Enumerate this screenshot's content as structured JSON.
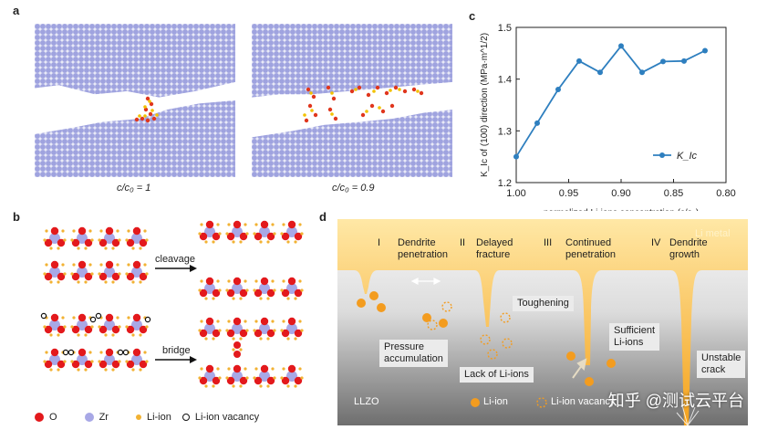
{
  "panel_a": {
    "label": "a",
    "caption_left": "c/c₀ = 1",
    "caption_right": "c/c₀ = 0.9"
  },
  "panel_b": {
    "label": "b",
    "cleavage": "cleavage",
    "bridge": "bridge",
    "legend": {
      "o": "O",
      "zr": "Zr",
      "li": "Li-ion",
      "vacancy": "Li-ion vacancy"
    }
  },
  "panel_c": {
    "label": "c",
    "chart_data": {
      "type": "line",
      "xlabel": "normalized Li-ions concentration (c/c₀)",
      "ylabel": "K_Ic of (100) direction (MPa·m^1/2)",
      "x": [
        1.0,
        0.98,
        0.96,
        0.94,
        0.92,
        0.9,
        0.88,
        0.86,
        0.84,
        0.82
      ],
      "y": [
        1.25,
        1.315,
        1.38,
        1.435,
        1.413,
        1.464,
        1.413,
        1.434,
        1.435,
        1.455
      ],
      "xlim": [
        1.0,
        0.8
      ],
      "ylim": [
        1.2,
        1.5
      ],
      "x_ticks": [
        "1.00",
        "0.95",
        "0.90",
        "0.85",
        "0.80"
      ],
      "y_ticks": [
        "1.2",
        "1.3",
        "1.4",
        "1.5"
      ],
      "series_name": "K_Ic",
      "legend_position": "bottom-right",
      "color": "#2e7fbf"
    }
  },
  "panel_d": {
    "label": "d",
    "li_metal": "Li metal",
    "stage1_num": "I",
    "stage1": "Dendrite\npenetration",
    "stage2_num": "II",
    "stage2": "Delayed\nfracture",
    "stage3_num": "III",
    "stage3": "Continued\npenetration",
    "stage4_num": "IV",
    "stage4": "Dendrite\ngrowth",
    "toughening": "Toughening",
    "pressure": "Pressure\naccumulation",
    "lack": "Lack of Li-ions",
    "sufficient": "Sufficient\nLi-ions",
    "unstable": "Unstable\ncrack",
    "llzo": "LLZO",
    "legend_li": "Li-ion",
    "legend_vacancy": "Li-ion vacancy"
  },
  "watermark": "知乎 @测试云平台"
}
